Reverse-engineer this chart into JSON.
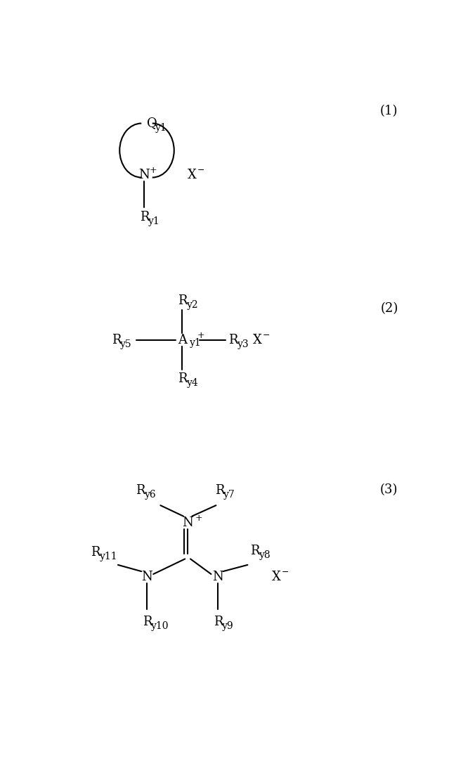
{
  "bg_color": "#ffffff",
  "text_color": "#000000",
  "figsize": [
    6.49,
    11.1
  ],
  "dpi": 100,
  "font_size": 13,
  "subscript_size": 10,
  "superscript_size": 9,
  "line_color": "#000000",
  "line_width": 1.5,
  "struct1_label": "(1)",
  "struct2_label": "(2)",
  "struct3_label": "(3)"
}
